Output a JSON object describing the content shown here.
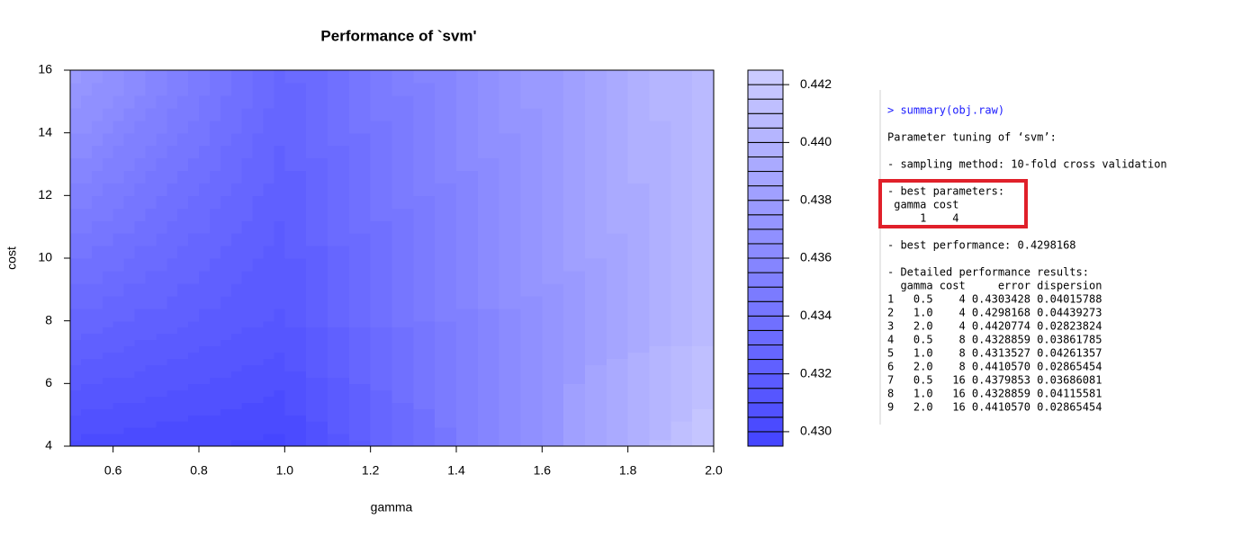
{
  "chart_data": {
    "type": "filled-contour",
    "title": "Performance of `svm'",
    "x_label": "gamma",
    "y_label": "cost",
    "x": [
      0.5,
      1,
      2
    ],
    "y": [
      4,
      8,
      16
    ],
    "z": [
      [
        0.4303428,
        0.4298168,
        0.4420774
      ],
      [
        0.4328859,
        0.4313527,
        0.441057
      ],
      [
        0.4379853,
        0.4328859,
        0.441057
      ]
    ],
    "xlim": [
      0.5,
      2
    ],
    "xticks": [
      0.6,
      0.8,
      {
        "value": 1,
        "label": "1.0"
      },
      1.2,
      1.4,
      1.6,
      1.8,
      {
        "value": 2,
        "label": "2.0"
      }
    ],
    "ylim": [
      4,
      16
    ],
    "yticks": [
      4,
      6,
      8,
      10,
      12,
      14,
      16
    ],
    "zlim": [
      0.4295,
      0.4425
    ],
    "nlevels": 26,
    "zticks": [
      {
        "value": 0.43,
        "label": "0.430"
      },
      0.432,
      0.434,
      0.436,
      0.438,
      {
        "value": 0.44,
        "label": "0.440"
      },
      0.442
    ],
    "color_low": "#4646ff",
    "color_high": "#cacaff"
  },
  "console": {
    "command": "> summary(obj.raw)",
    "blocks": [
      [
        "Parameter tuning of ‘svm’:"
      ],
      [
        "- sampling method: 10-fold cross validation"
      ],
      [
        "- best parameters:",
        " gamma cost",
        "     1    4"
      ],
      [
        "- best performance: 0.4298168"
      ],
      [
        "- Detailed performance results:",
        "  gamma cost     error dispersion",
        "1   0.5    4 0.4303428 0.04015788",
        "2   1.0    4 0.4298168 0.04439273",
        "3   2.0    4 0.4420774 0.02823824",
        "4   0.5    8 0.4328859 0.03861785",
        "5   1.0    8 0.4313527 0.04261357",
        "6   2.0    8 0.4410570 0.02865454",
        "7   0.5   16 0.4379853 0.03686081",
        "8   1.0   16 0.4328859 0.04115581",
        "9   2.0   16 0.4410570 0.02865454"
      ]
    ]
  }
}
